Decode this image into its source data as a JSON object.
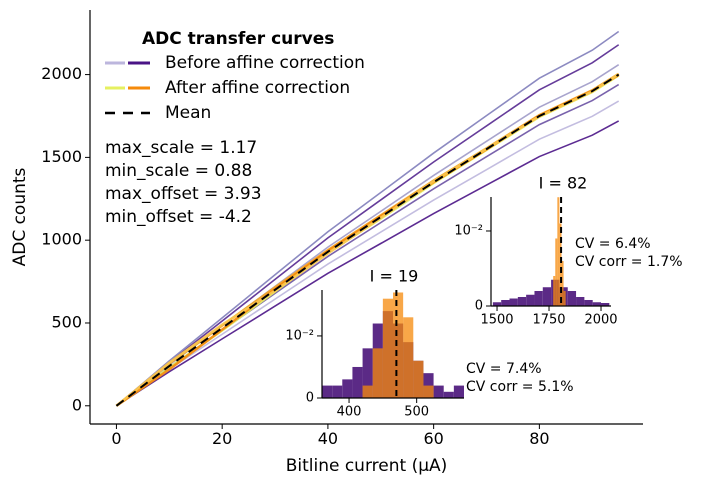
{
  "chart_data": [
    {
      "type": "line",
      "legend_title": "ADC transfer curves",
      "xlabel": "Bitline current (μA)",
      "ylabel": "ADC counts",
      "x": [
        0,
        10,
        20,
        30,
        40,
        50,
        60,
        70,
        80,
        90,
        95
      ],
      "xlim": [
        -5,
        99.6
      ],
      "ylim": [
        -110,
        2390
      ],
      "xticks": [
        0,
        20,
        40,
        60,
        80
      ],
      "yticks": [
        0,
        500,
        1000,
        1500,
        2000
      ],
      "series": [
        {
          "name": "Before affine correction",
          "legend_colors": [
            "#bcb6dd",
            "#4a1486"
          ],
          "colors": [
            "#4a1486",
            "#bcb6dd",
            "#6a51a3",
            "#9e9ac8",
            "#54278f",
            "#807dba"
          ],
          "lines": [
            [
              0,
              206,
              404,
              602,
              800,
              980,
              1161,
              1333,
              1505,
              1634,
              1720
            ],
            [
              0,
              221,
              432,
              644,
              856,
              1049,
              1242,
              1426,
              1610,
              1748,
              1840
            ],
            [
              0,
              233,
              456,
              679,
              902,
              1106,
              1310,
              1504,
              1698,
              1843,
              1940
            ],
            [
              0,
              247,
              484,
              721,
              958,
              1174,
              1391,
              1597,
              1803,
              1957,
              2060
            ],
            [
              0,
              262,
              512,
              763,
              1014,
              1243,
              1472,
              1690,
              1908,
              2071,
              2180
            ],
            [
              0,
              271,
              531,
              791,
              1051,
              1288,
              1526,
              1752,
              1978,
              2147,
              2260
            ]
          ]
        },
        {
          "name": "After affine correction",
          "legend_colors": [
            "#e6f060",
            "#f58a0b"
          ],
          "colors": [
            "#e6f060",
            "#f5a623",
            "#f58a0b",
            "#f9c74f"
          ],
          "lines": [
            [
              0,
              230,
              455,
              690,
              925,
              1130,
              1345,
              1545,
              1745,
              1895,
              1995
            ],
            [
              0,
              255,
              485,
              715,
              940,
              1150,
              1360,
              1555,
              1755,
              1905,
              2005
            ],
            [
              0,
              220,
              460,
              705,
              935,
              1145,
              1350,
              1548,
              1752,
              1902,
              1998
            ],
            [
              0,
              260,
              490,
              695,
              920,
              1135,
              1355,
              1552,
              1748,
              1898,
              2003
            ]
          ]
        },
        {
          "name": "Mean",
          "color": "#000000",
          "dashed": true,
          "values": [
            0,
            240,
            470,
            700,
            930,
            1140,
            1350,
            1550,
            1750,
            1900,
            2000
          ]
        }
      ],
      "annotations": [
        "max_scale = 1.17",
        "min_scale = 0.88",
        "max_offset = 3.93",
        "min_offset = -4.2"
      ]
    },
    {
      "type": "histogram",
      "title": "I = 19",
      "xlim": [
        360,
        570
      ],
      "ylim": [
        0,
        0.0174
      ],
      "xticks": [
        400,
        500
      ],
      "yticks": [
        0,
        {
          "value": 0.01,
          "label": "10⁻²"
        }
      ],
      "mean": 470,
      "series": [
        {
          "color": "#5b2a86",
          "bins": [
            360,
            375,
            390,
            405,
            420,
            435,
            450,
            465,
            480,
            495,
            510,
            525,
            540,
            555,
            570
          ],
          "values": [
            0.002,
            0.002,
            0.003,
            0.005,
            0.008,
            0.012,
            0.014,
            0.012,
            0.009,
            0.006,
            0.004,
            0.002,
            0.001,
            0.002
          ]
        },
        {
          "color": "#f58a0b",
          "opacity": 0.75,
          "bins": [
            420,
            435,
            450,
            465,
            480,
            495,
            510,
            525
          ],
          "values": [
            0.002,
            0.008,
            0.016,
            0.017,
            0.013,
            0.006,
            0.002
          ]
        }
      ],
      "annotations": [
        "CV = 7.4%",
        "CV corr = 5.1%"
      ]
    },
    {
      "type": "histogram",
      "title": "I = 82",
      "xlim": [
        1471,
        2048
      ],
      "ylim": [
        0,
        0.01453
      ],
      "xticks": [
        1500,
        1750,
        2000
      ],
      "yticks": [
        0,
        {
          "value": 0.01,
          "label": "10⁻²"
        }
      ],
      "mean": 1808,
      "series": [
        {
          "color": "#5b2a86",
          "bins": [
            1480,
            1520,
            1560,
            1600,
            1640,
            1680,
            1720,
            1760,
            1800,
            1840,
            1880,
            1920,
            1960,
            2000,
            2040
          ],
          "values": [
            0.0005,
            0.0008,
            0.001,
            0.0012,
            0.0015,
            0.002,
            0.0025,
            0.0035,
            0.0025,
            0.002,
            0.0012,
            0.0008,
            0.0005,
            0.0004
          ]
        },
        {
          "color": "#f58a0b",
          "opacity": 0.75,
          "bins": [
            1770,
            1780,
            1790,
            1800,
            1810,
            1820,
            1830
          ],
          "values": [
            0.004,
            0.009,
            0.0145,
            0.011,
            0.006,
            0.002
          ]
        }
      ],
      "annotations": [
        "CV = 6.4%",
        "CV corr = 1.7%"
      ]
    }
  ]
}
